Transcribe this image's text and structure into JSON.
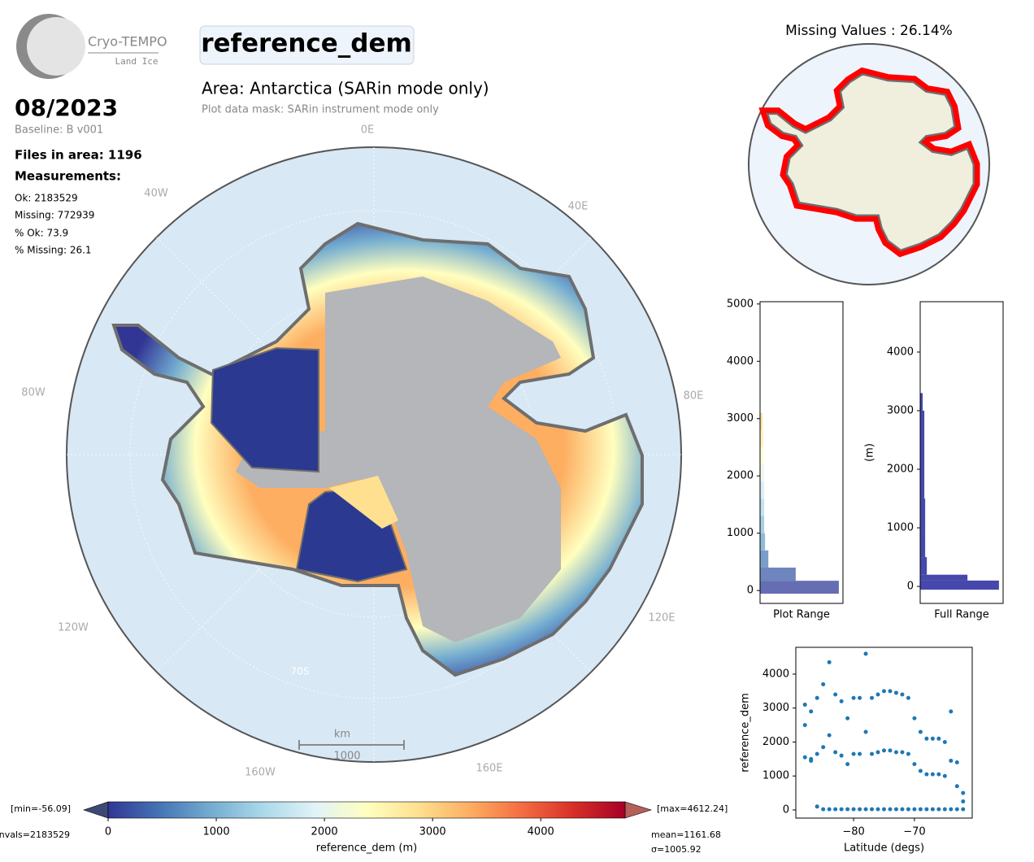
{
  "header": {
    "logo_title": "Cryo-TEMPO",
    "logo_subtitle": "Land Ice",
    "parameter": "reference_dem",
    "area": "Area: Antarctica (SARin mode only)",
    "mask": "Plot data mask: SARin instrument mode only",
    "date": "08/2023",
    "baseline": "Baseline: B v001",
    "files": "Files in area: 1196",
    "measurements_title": "Measurements:",
    "ok": "Ok: 2183529",
    "missing": "Missing: 772939",
    "pct_ok": "% Ok: 73.9",
    "pct_missing": "% Missing: 26.1"
  },
  "map": {
    "lon_labels": [
      "0E",
      "40E",
      "80E",
      "120E",
      "160E",
      "160W",
      "120W",
      "80W",
      "40W"
    ],
    "lat_label": "70S",
    "scale_unit": "km",
    "scale_value": "1000"
  },
  "missing_map": {
    "title": "Missing Values : 26.14%"
  },
  "chart_data": [
    {
      "type": "colorbar",
      "xlabel": "reference_dem (m)",
      "xlim": [
        0,
        4780
      ],
      "xticks": [
        0,
        1000,
        2000,
        3000,
        4000
      ],
      "colors": [
        "#313695",
        "#4575b4",
        "#74add1",
        "#abd9e9",
        "#e0f3f8",
        "#ffffbf",
        "#fee090",
        "#fdae61",
        "#f46d43",
        "#d73027",
        "#a50026"
      ],
      "under_color": "#3d4a75",
      "over_color": "#b5605a",
      "min_label": "[min=-56.09]",
      "max_label": "[max=4612.24]",
      "nvals": "nvals=2183529",
      "mean": "mean=1161.68",
      "sigma": "σ=1005.92"
    },
    {
      "type": "histogram",
      "xlabel": "Plot Range",
      "xlim": [
        0,
        100
      ],
      "ylim": [
        -225,
        5040
      ],
      "yticks": [
        0,
        1000,
        2000,
        3000,
        4000,
        5000
      ],
      "bins": [
        -56,
        170,
        400,
        700,
        1000,
        1300,
        1600,
        1900,
        2200,
        2500,
        2800,
        3100
      ],
      "values": [
        95,
        43,
        10,
        6,
        5,
        5,
        5,
        5,
        4,
        4,
        3
      ]
    },
    {
      "type": "histogram",
      "xlabel": "Full Range",
      "ylabel": "(m)",
      "color": "#3c3ea6",
      "xlim": [
        0,
        100
      ],
      "ylim": [
        -290,
        4860
      ],
      "yticks": [
        0,
        1000,
        2000,
        3000,
        4000
      ],
      "bins": [
        -56,
        100,
        200,
        500,
        1000,
        1500,
        2000,
        2500,
        3000,
        3300
      ],
      "values": [
        95,
        57,
        8,
        6,
        6,
        5,
        5,
        5,
        3
      ]
    },
    {
      "type": "scatter",
      "xlabel": "Latitude (degs)",
      "ylabel": "reference_dem",
      "color": "#1f77b4",
      "xlim": [
        -89.5,
        -60.5
      ],
      "ylim": [
        -240,
        4790
      ],
      "xticks": [
        {
          "value": -80,
          "label": "−80"
        },
        {
          "value": -70,
          "label": "−70"
        }
      ],
      "yticks": [
        0,
        1000,
        2000,
        3000,
        4000
      ],
      "x": [
        -88,
        -87,
        -86,
        -85,
        -84,
        -83,
        -82,
        -81,
        -80,
        -79,
        -78,
        -77,
        -76,
        -75,
        -74,
        -73,
        -72,
        -71,
        -70,
        -69,
        -68,
        -67,
        -66,
        -65,
        -64,
        -63,
        -62,
        -88,
        -87,
        -86,
        -85,
        -84,
        -83,
        -82,
        -81,
        -80,
        -79,
        -78,
        -77,
        -76,
        -75,
        -74,
        -73,
        -72,
        -71,
        -70,
        -69,
        -68,
        -67,
        -66,
        -65,
        -64,
        -63,
        -62,
        -88,
        -87,
        -86,
        -85,
        -84,
        -83,
        -82,
        -81,
        -80,
        -79,
        -78,
        -77,
        -76,
        -75,
        -74,
        -73,
        -72,
        -71,
        -70,
        -69,
        -68,
        -67,
        -66,
        -65,
        -64,
        -63,
        -62
      ],
      "y": [
        3100,
        2900,
        3300,
        3700,
        4350,
        3400,
        3200,
        2700,
        3300,
        3300,
        4600,
        3300,
        3400,
        3500,
        3500,
        3450,
        3400,
        3300,
        2700,
        2300,
        2100,
        2100,
        2100,
        2000,
        2900,
        1400,
        500,
        1550,
        1450,
        1650,
        1850,
        2200,
        1700,
        1600,
        1350,
        1650,
        1650,
        2300,
        1650,
        1700,
        1750,
        1750,
        1700,
        1700,
        1650,
        1350,
        1150,
        1050,
        1050,
        1050,
        1000,
        1450,
        700,
        250,
        2500,
        1500,
        100,
        20,
        20,
        20,
        20,
        20,
        20,
        20,
        20,
        20,
        20,
        20,
        20,
        20,
        20,
        20,
        20,
        20,
        20,
        20,
        20,
        20,
        20,
        20,
        20
      ]
    }
  ]
}
